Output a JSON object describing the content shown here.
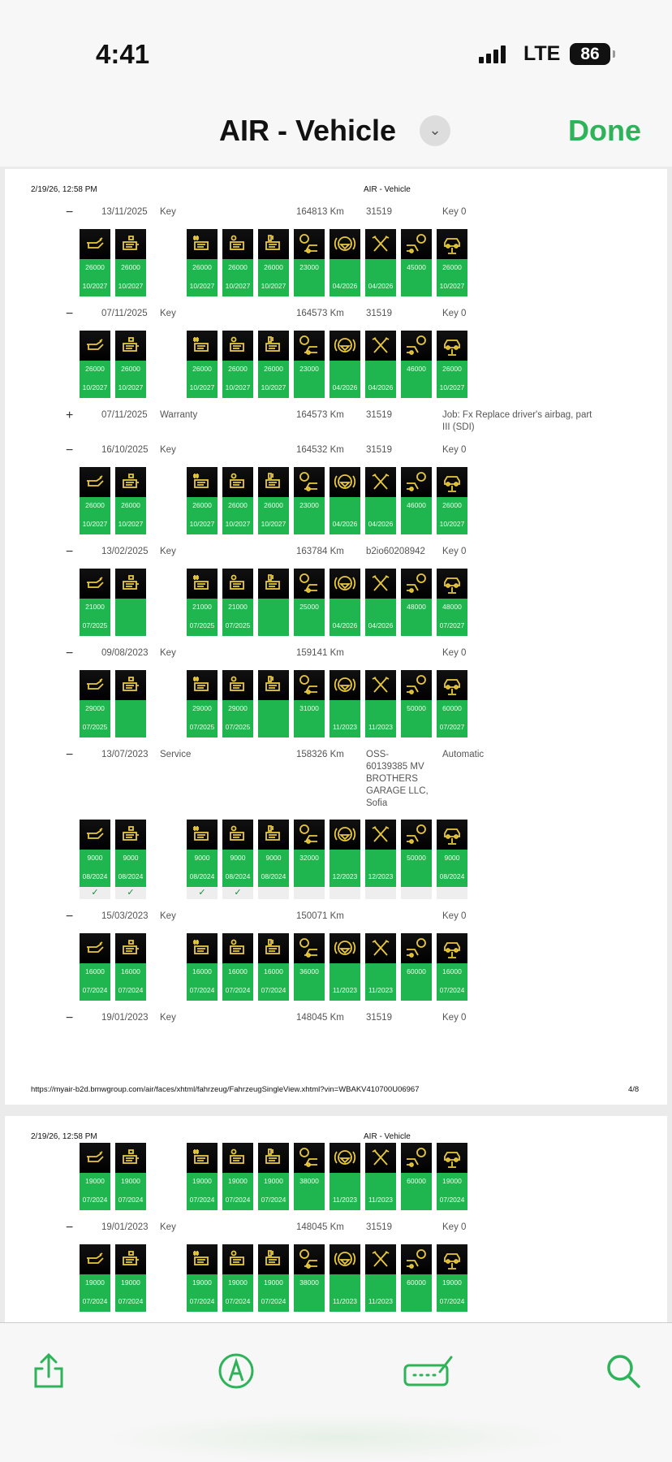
{
  "status_bar": {
    "time": "4:41",
    "network": "LTE",
    "battery": "86"
  },
  "nav": {
    "title": "AIR - Vehicle",
    "done_label": "Done"
  },
  "colors": {
    "accent": "#2fb35a",
    "tile_green": "#1fb64f",
    "icon_yellow": "#e9c93a"
  },
  "page1": {
    "print_date": "2/19/26, 12:58 PM",
    "print_title": "AIR - Vehicle",
    "url": "https://myair-b2d.bmwgroup.com/air/faces/xhtml/fahrzeug/FahrzeugSingleView.xhtml?vin=WBAKV410700U06967",
    "page_number": "4/8"
  },
  "page2": {
    "print_date": "2/19/26, 12:58 PM",
    "print_title": "AIR - Vehicle"
  },
  "tile_icons": [
    "oil-can-icon",
    "engine-filter-icon",
    "engine-hash-icon",
    "engine-cycle-icon",
    "engine-fuel-icon",
    "front-brake-icon",
    "brake-fluid-icon",
    "service-tools-icon",
    "rear-brake-icon",
    "vehicle-lift-icon"
  ],
  "entries": [
    {
      "toggle": "−",
      "date": "13/11/2025",
      "type": "Key",
      "km": "164813 Km",
      "code": "31519",
      "info": "Key 0",
      "tiles": [
        [
          "26000",
          "10/2027"
        ],
        [
          "26000",
          "10/2027"
        ],
        [
          "26000",
          "10/2027"
        ],
        [
          "26000",
          "10/2027"
        ],
        [
          "26000",
          "10/2027"
        ],
        [
          "23000",
          ""
        ],
        [
          "",
          "04/2026"
        ],
        [
          "",
          "04/2026"
        ],
        [
          "45000",
          ""
        ],
        [
          "26000",
          "10/2027"
        ]
      ]
    },
    {
      "toggle": "−",
      "date": "07/11/2025",
      "type": "Key",
      "km": "164573 Km",
      "code": "31519",
      "info": "Key 0",
      "tiles": [
        [
          "26000",
          "10/2027"
        ],
        [
          "26000",
          "10/2027"
        ],
        [
          "26000",
          "10/2027"
        ],
        [
          "26000",
          "10/2027"
        ],
        [
          "26000",
          "10/2027"
        ],
        [
          "23000",
          ""
        ],
        [
          "",
          "04/2026"
        ],
        [
          "",
          "04/2026"
        ],
        [
          "46000",
          ""
        ],
        [
          "26000",
          "10/2027"
        ]
      ]
    },
    {
      "toggle": "+",
      "date": "07/11/2025",
      "type": "Warranty",
      "km": "164573 Km",
      "code": "31519",
      "info": "Job: Fx Replace driver's airbag, part\nIII (SDI)",
      "tiles": []
    },
    {
      "toggle": "−",
      "date": "16/10/2025",
      "type": "Key",
      "km": "164532 Km",
      "code": "31519",
      "info": "Key 0",
      "tiles": [
        [
          "26000",
          "10/2027"
        ],
        [
          "26000",
          "10/2027"
        ],
        [
          "26000",
          "10/2027"
        ],
        [
          "26000",
          "10/2027"
        ],
        [
          "26000",
          "10/2027"
        ],
        [
          "23000",
          ""
        ],
        [
          "",
          "04/2026"
        ],
        [
          "",
          "04/2026"
        ],
        [
          "46000",
          ""
        ],
        [
          "26000",
          "10/2027"
        ]
      ]
    },
    {
      "toggle": "−",
      "date": "13/02/2025",
      "type": "Key",
      "km": "163784 Km",
      "code": "b2io60208942",
      "info": "Key 0",
      "tiles": [
        [
          "21000",
          "07/2025"
        ],
        [
          "",
          ""
        ],
        [
          "21000",
          "07/2025"
        ],
        [
          "21000",
          "07/2025"
        ],
        [
          "",
          ""
        ],
        [
          "25000",
          ""
        ],
        [
          "",
          "04/2026"
        ],
        [
          "",
          "04/2026"
        ],
        [
          "48000",
          ""
        ],
        [
          "48000",
          "07/2027"
        ]
      ]
    },
    {
      "toggle": "−",
      "date": "09/08/2023",
      "type": "Key",
      "km": "159141 Km",
      "code": "",
      "info": "Key 0",
      "tiles": [
        [
          "29000",
          "07/2025"
        ],
        [
          "",
          ""
        ],
        [
          "29000",
          "07/2025"
        ],
        [
          "29000",
          "07/2025"
        ],
        [
          "",
          ""
        ],
        [
          "31000",
          ""
        ],
        [
          "",
          "11/2023"
        ],
        [
          "",
          "11/2023"
        ],
        [
          "50000",
          ""
        ],
        [
          "60000",
          "07/2027"
        ]
      ]
    },
    {
      "toggle": "−",
      "date": "13/07/2023",
      "type": "Service",
      "km": "158326 Km",
      "code": "OSS-\n60139385 MV\nBROTHERS\nGARAGE LLC,\nSofia",
      "info": "Automatic",
      "tiles": [
        [
          "9000",
          "08/2024"
        ],
        [
          "9000",
          "08/2024"
        ],
        [
          "9000",
          "08/2024"
        ],
        [
          "9000",
          "08/2024"
        ],
        [
          "9000",
          "08/2024"
        ],
        [
          "32000",
          ""
        ],
        [
          "",
          "12/2023"
        ],
        [
          "",
          "12/2023"
        ],
        [
          "50000",
          ""
        ],
        [
          "9000",
          "08/2024"
        ]
      ],
      "checks": [
        "✓",
        "✓",
        "✓",
        "✓",
        "",
        "",
        "",
        "",
        "",
        ""
      ]
    },
    {
      "toggle": "−",
      "date": "15/03/2023",
      "type": "Key",
      "km": "150071 Km",
      "code": "",
      "info": "Key 0",
      "tiles": [
        [
          "16000",
          "07/2024"
        ],
        [
          "16000",
          "07/2024"
        ],
        [
          "16000",
          "07/2024"
        ],
        [
          "16000",
          "07/2024"
        ],
        [
          "16000",
          "07/2024"
        ],
        [
          "36000",
          ""
        ],
        [
          "",
          "11/2023"
        ],
        [
          "",
          "11/2023"
        ],
        [
          "60000",
          ""
        ],
        [
          "16000",
          "07/2024"
        ]
      ]
    },
    {
      "toggle": "−",
      "date": "19/01/2023",
      "type": "Key",
      "km": "148045 Km",
      "code": "31519",
      "info": "Key 0",
      "tiles": []
    }
  ],
  "entries_page2": [
    {
      "continuation": true,
      "tiles": [
        [
          "19000",
          "07/2024"
        ],
        [
          "19000",
          "07/2024"
        ],
        [
          "19000",
          "07/2024"
        ],
        [
          "19000",
          "07/2024"
        ],
        [
          "19000",
          "07/2024"
        ],
        [
          "38000",
          ""
        ],
        [
          "",
          "11/2023"
        ],
        [
          "",
          "11/2023"
        ],
        [
          "60000",
          ""
        ],
        [
          "19000",
          "07/2024"
        ]
      ]
    },
    {
      "toggle": "−",
      "date": "19/01/2023",
      "type": "Key",
      "km": "148045 Km",
      "code": "31519",
      "info": "Key 0",
      "tiles": [
        [
          "19000",
          "07/2024"
        ],
        [
          "19000",
          "07/2024"
        ],
        [
          "19000",
          "07/2024"
        ],
        [
          "19000",
          "07/2024"
        ],
        [
          "19000",
          "07/2024"
        ],
        [
          "38000",
          ""
        ],
        [
          "",
          "11/2023"
        ],
        [
          "",
          "11/2023"
        ],
        [
          "60000",
          ""
        ],
        [
          "19000",
          "07/2024"
        ]
      ]
    }
  ],
  "toolbar": {
    "items": [
      "share-icon",
      "markup-icon",
      "signature-icon",
      "search-icon"
    ]
  }
}
